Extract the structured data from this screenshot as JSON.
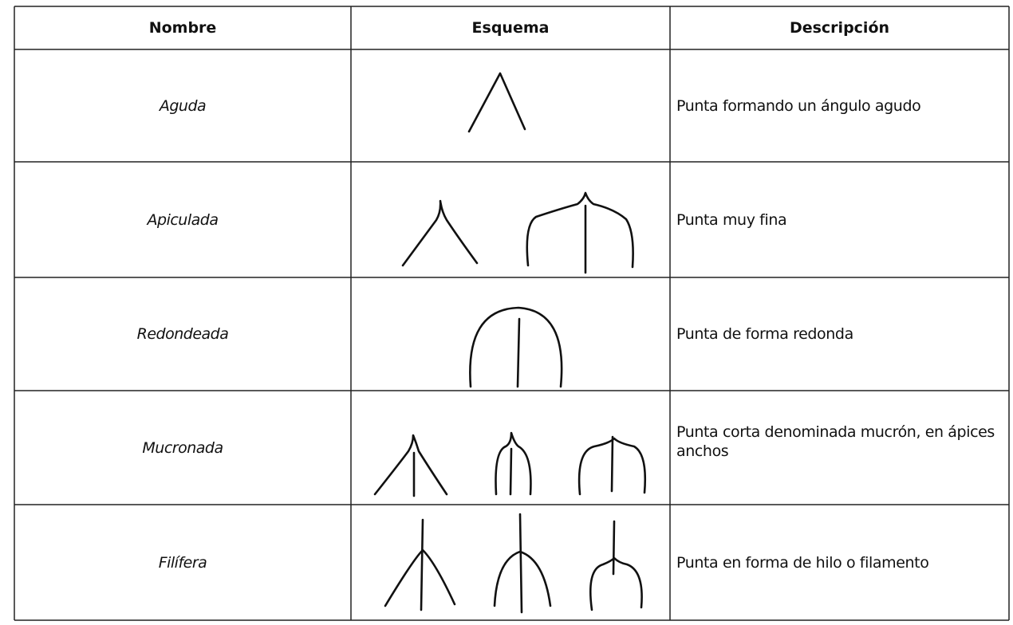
{
  "table": {
    "header": [
      "Nombre",
      "Esquema",
      "Descripción"
    ],
    "rows": [
      {
        "name": "Aguda",
        "description": "Punta formando un ángulo agudo"
      },
      {
        "name": "Apiculada",
        "description": "Punta muy fina"
      },
      {
        "name": "Redondeada",
        "description": "Punta de forma redonda"
      },
      {
        "name": "Mucronada",
        "description": "Punta corta denominada mucrón, en ápices anchos"
      },
      {
        "name": "Filífera",
        "description": "Punta en forma de hilo o filamento"
      }
    ]
  }
}
